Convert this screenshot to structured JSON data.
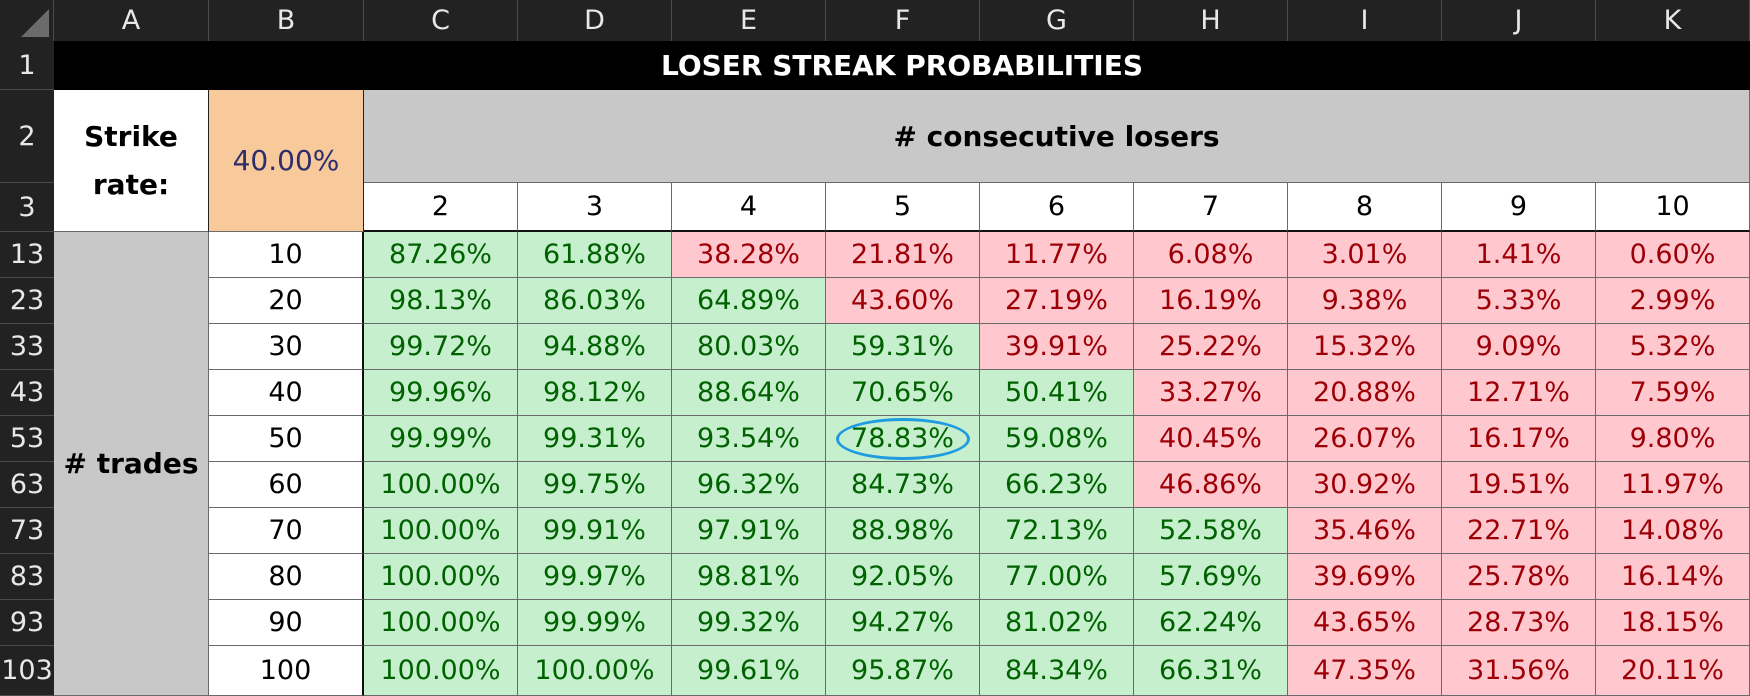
{
  "columns": [
    "A",
    "B",
    "C",
    "D",
    "E",
    "F",
    "G",
    "H",
    "I",
    "J",
    "K"
  ],
  "rows": [
    "1",
    "2",
    "3",
    "13",
    "23",
    "33",
    "43",
    "53",
    "63",
    "73",
    "83",
    "93",
    "103"
  ],
  "title": "LOSER STREAK PROBABILITIES",
  "strike_label": "Strike rate:",
  "strike_value": "40.00%",
  "consecutive_label": "# consecutive losers",
  "trades_label": "# trades",
  "streak_lengths": [
    "2",
    "3",
    "4",
    "5",
    "6",
    "7",
    "8",
    "9",
    "10"
  ],
  "trades": [
    "10",
    "20",
    "30",
    "40",
    "50",
    "60",
    "70",
    "80",
    "90",
    "100"
  ],
  "table": [
    [
      "87.26%",
      "61.88%",
      "38.28%",
      "21.81%",
      "11.77%",
      "6.08%",
      "3.01%",
      "1.41%",
      "0.60%"
    ],
    [
      "98.13%",
      "86.03%",
      "64.89%",
      "43.60%",
      "27.19%",
      "16.19%",
      "9.38%",
      "5.33%",
      "2.99%"
    ],
    [
      "99.72%",
      "94.88%",
      "80.03%",
      "59.31%",
      "39.91%",
      "25.22%",
      "15.32%",
      "9.09%",
      "5.32%"
    ],
    [
      "99.96%",
      "98.12%",
      "88.64%",
      "70.65%",
      "50.41%",
      "33.27%",
      "20.88%",
      "12.71%",
      "7.59%"
    ],
    [
      "99.99%",
      "99.31%",
      "93.54%",
      "78.83%",
      "59.08%",
      "40.45%",
      "26.07%",
      "16.17%",
      "9.80%"
    ],
    [
      "100.00%",
      "99.75%",
      "96.32%",
      "84.73%",
      "66.23%",
      "46.86%",
      "30.92%",
      "19.51%",
      "11.97%"
    ],
    [
      "100.00%",
      "99.91%",
      "97.91%",
      "88.98%",
      "72.13%",
      "52.58%",
      "35.46%",
      "22.71%",
      "14.08%"
    ],
    [
      "100.00%",
      "99.97%",
      "98.81%",
      "92.05%",
      "77.00%",
      "57.69%",
      "39.69%",
      "25.78%",
      "16.14%"
    ],
    [
      "100.00%",
      "99.99%",
      "99.32%",
      "94.27%",
      "81.02%",
      "62.24%",
      "43.65%",
      "28.73%",
      "18.15%"
    ],
    [
      "100.00%",
      "100.00%",
      "99.61%",
      "95.87%",
      "84.34%",
      "66.31%",
      "47.35%",
      "31.56%",
      "20.11%"
    ]
  ],
  "highlight": {
    "row": 4,
    "col": 3
  },
  "threshold_percent": 50,
  "colors": {
    "green_fill": "#c6efce",
    "green_text": "#006100",
    "red_fill": "#ffc7ce",
    "red_text": "#9c0006",
    "strike_fill": "#f8c99b",
    "header_gray": "#c8c8c8",
    "circle": "#1f9be0"
  }
}
